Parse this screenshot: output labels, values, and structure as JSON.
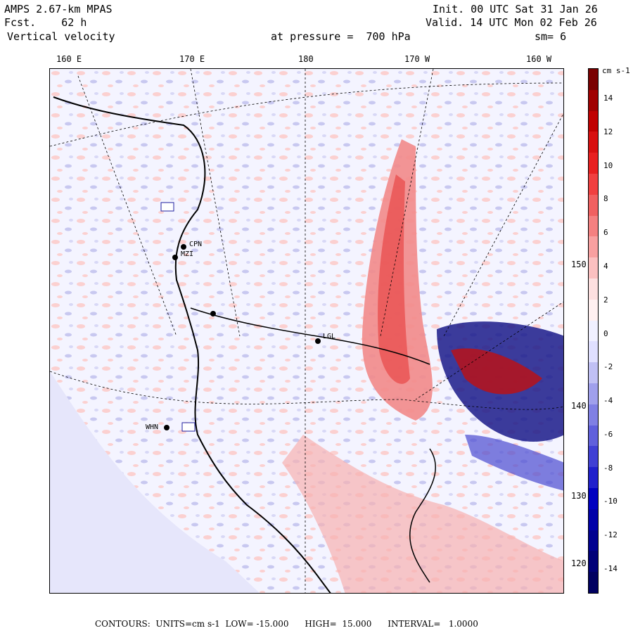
{
  "header": {
    "model": "AMPS 2.67-km MPAS",
    "forecast": "Fcst.    62 h",
    "field": "Vertical velocity",
    "init": "Init. 00 UTC Sat 31 Jan 26",
    "valid": "Valid. 14 UTC Mon 02 Feb 26",
    "pressure": "at pressure =  700 hPa",
    "smoothing": "sm= 6"
  },
  "lon_labels": [
    "160 E",
    "170 E",
    "180",
    "170 W",
    "160 W"
  ],
  "lat_labels": [
    "150 W",
    "140 W",
    "130 W",
    "120 W"
  ],
  "colorbar": {
    "units": "cm s-1",
    "ticks": [
      "14",
      "12",
      "10",
      "8",
      "6",
      "4",
      "2",
      "0",
      "-2",
      "-4",
      "-6",
      "-8",
      "-10",
      "-12",
      "-14"
    ],
    "colors": [
      "#7a0000",
      "#a00000",
      "#c00000",
      "#d81010",
      "#e82020",
      "#f04040",
      "#f06060",
      "#f48080",
      "#f8a0a0",
      "#fbc0c0",
      "#fde0e0",
      "#fff0f0",
      "#f0f0ff",
      "#e0e0ff",
      "#c0c0f4",
      "#a0a0ec",
      "#8080e4",
      "#6060dc",
      "#4040d4",
      "#2020cc",
      "#0000c0",
      "#0000a8",
      "#000090",
      "#000078",
      "#000060"
    ]
  },
  "stations": [
    "CPN",
    "MZI",
    "LGL",
    "WHN"
  ],
  "footer": {
    "label": "CONTOURS:",
    "units": "UNITS=cm s-1",
    "low": "LOW= -15.000",
    "high": "HIGH=  15.000",
    "interval": "INTERVAL=   1.0000"
  }
}
